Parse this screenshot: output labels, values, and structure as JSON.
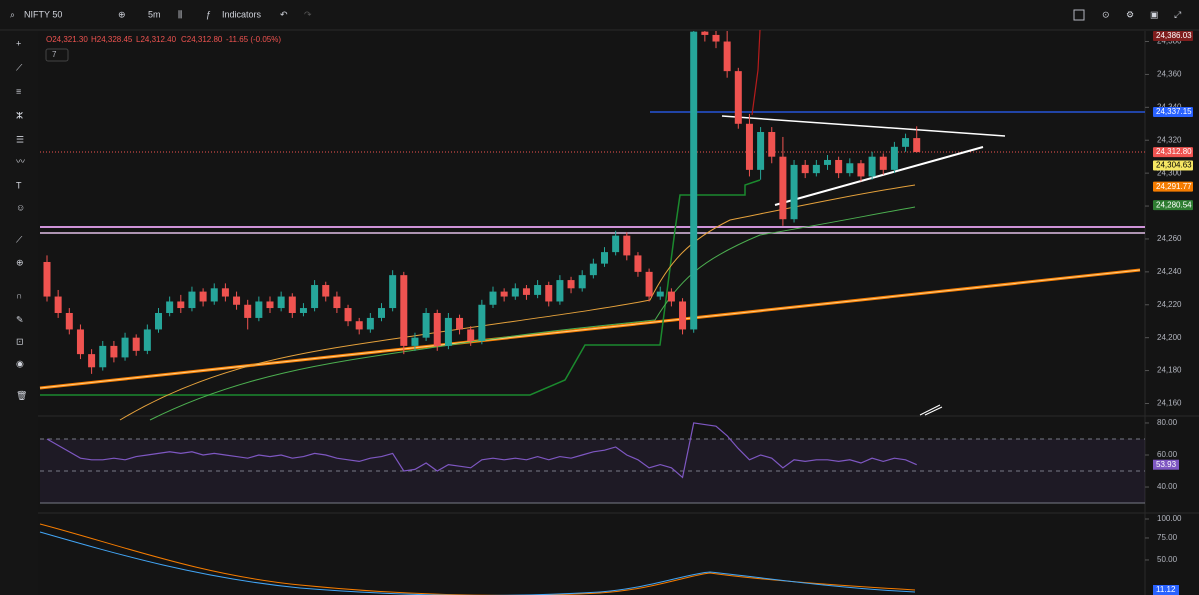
{
  "toolbar": {
    "symbol": "NIFTY 50",
    "interval": "5m",
    "indicators": "Indicators"
  },
  "legend": {
    "open": "O24,321.30",
    "high": "H24,328.45",
    "low": "L24,312.40",
    "close": "C24,312.80",
    "change": "-11.65 (-0.05%)",
    "collapsed_count": "7"
  },
  "price_chart": {
    "type": "candlestick",
    "ylim": [
      24153,
      24387
    ],
    "yticks": [
      {
        "value": 24160,
        "label": "24,160"
      },
      {
        "value": 24180,
        "label": "24,180"
      },
      {
        "value": 24200,
        "label": "24,200"
      },
      {
        "value": 24220,
        "label": "24,220"
      },
      {
        "value": 24240,
        "label": "24,240"
      },
      {
        "value": 24260,
        "label": "24,260"
      },
      {
        "value": 24280,
        "label": "24,280"
      },
      {
        "value": 24300,
        "label": "24,300"
      },
      {
        "value": 24320,
        "label": "24,320"
      },
      {
        "value": 24340,
        "label": "24,340"
      },
      {
        "value": 24360,
        "label": "24,360"
      },
      {
        "value": 24380,
        "label": "24,380"
      }
    ],
    "up_color": "#26a69a",
    "down_color": "#ef5350",
    "candles": [
      [
        24246,
        24250,
        24222,
        24225
      ],
      [
        24225,
        24229,
        24212,
        24215
      ],
      [
        24215,
        24218,
        24202,
        24205
      ],
      [
        24205,
        24208,
        24187,
        24190
      ],
      [
        24190,
        24193,
        24178,
        24182
      ],
      [
        24182,
        24198,
        24180,
        24195
      ],
      [
        24195,
        24198,
        24185,
        24188
      ],
      [
        24188,
        24203,
        24186,
        24200
      ],
      [
        24200,
        24202,
        24189,
        24192
      ],
      [
        24192,
        24208,
        24190,
        24205
      ],
      [
        24205,
        24218,
        24203,
        24215
      ],
      [
        24215,
        24225,
        24213,
        24222
      ],
      [
        24222,
        24226,
        24215,
        24218
      ],
      [
        24218,
        24231,
        24216,
        24228
      ],
      [
        24228,
        24230,
        24219,
        24222
      ],
      [
        24222,
        24233,
        24220,
        24230
      ],
      [
        24230,
        24233,
        24222,
        24225
      ],
      [
        24225,
        24228,
        24217,
        24220
      ],
      [
        24220,
        24223,
        24205,
        24212
      ],
      [
        24212,
        24225,
        24210,
        24222
      ],
      [
        24222,
        24225,
        24215,
        24218
      ],
      [
        24218,
        24228,
        24216,
        24225
      ],
      [
        24225,
        24227,
        24212,
        24215
      ],
      [
        24215,
        24221,
        24213,
        24218
      ],
      [
        24218,
        24235,
        24216,
        24232
      ],
      [
        24232,
        24234,
        24222,
        24225
      ],
      [
        24225,
        24228,
        24215,
        24218
      ],
      [
        24218,
        24220,
        24207,
        24210
      ],
      [
        24210,
        24212,
        24202,
        24205
      ],
      [
        24205,
        24215,
        24203,
        24212
      ],
      [
        24212,
        24221,
        24210,
        24218
      ],
      [
        24218,
        24241,
        24216,
        24238
      ],
      [
        24238,
        24240,
        24190,
        24195
      ],
      [
        24195,
        24203,
        24192,
        24200
      ],
      [
        24200,
        24218,
        24198,
        24215
      ],
      [
        24215,
        24217,
        24192,
        24195
      ],
      [
        24195,
        24215,
        24193,
        24212
      ],
      [
        24212,
        24214,
        24202,
        24205
      ],
      [
        24205,
        24207,
        24195,
        24198
      ],
      [
        24198,
        24223,
        24196,
        24220
      ],
      [
        24220,
        24231,
        24218,
        24228
      ],
      [
        24228,
        24230,
        24222,
        24225
      ],
      [
        24225,
        24233,
        24223,
        24230
      ],
      [
        24230,
        24232,
        24223,
        24226
      ],
      [
        24226,
        24235,
        24224,
        24232
      ],
      [
        24232,
        24234,
        24219,
        24222
      ],
      [
        24222,
        24238,
        24220,
        24235
      ],
      [
        24235,
        24237,
        24227,
        24230
      ],
      [
        24230,
        24241,
        24228,
        24238
      ],
      [
        24238,
        24248,
        24236,
        24245
      ],
      [
        24245,
        24255,
        24243,
        24252
      ],
      [
        24252,
        24265,
        24250,
        24262
      ],
      [
        24262,
        24264,
        24247,
        24250
      ],
      [
        24250,
        24252,
        24237,
        24240
      ],
      [
        24240,
        24242,
        24222,
        24225
      ],
      [
        24225,
        24231,
        24223,
        24228
      ],
      [
        24228,
        24230,
        24219,
        24222
      ],
      [
        24222,
        24224,
        24202,
        24205
      ],
      [
        24205,
        24395,
        24203,
        24386
      ],
      [
        24386,
        24392,
        24380,
        24384
      ],
      [
        24384,
        24390,
        24376,
        24380
      ],
      [
        24380,
        24390,
        24358,
        24362
      ],
      [
        24362,
        24364,
        24327,
        24330
      ],
      [
        24330,
        24336,
        24298,
        24302
      ],
      [
        24302,
        24328,
        24296,
        24325
      ],
      [
        24325,
        24328,
        24306,
        24310
      ],
      [
        24310,
        24322,
        24268,
        24272
      ],
      [
        24272,
        24308,
        24270,
        24305
      ],
      [
        24305,
        24308,
        24297,
        24300
      ],
      [
        24300,
        24308,
        24298,
        24305
      ],
      [
        24305,
        24311,
        24302,
        24308
      ],
      [
        24308,
        24310,
        24297,
        24300
      ],
      [
        24300,
        24309,
        24298,
        24306
      ],
      [
        24306,
        24308,
        24295,
        24298
      ],
      [
        24298,
        24313,
        24296,
        24310
      ],
      [
        24310,
        24312,
        24299,
        24302
      ],
      [
        24302,
        24319,
        24300,
        24316
      ],
      [
        24316,
        24324,
        24313,
        24321.3
      ],
      [
        24321.3,
        24328.45,
        24312.4,
        24312.8
      ]
    ],
    "price_labels": [
      {
        "value": 24386.03,
        "label": "24,386.03",
        "color": "#7f1d1d"
      },
      {
        "value": 24337.15,
        "label": "24,337.15",
        "color": "#2962ff"
      },
      {
        "value": 24312.8,
        "label": "24,312.80",
        "color": "#ef5350"
      },
      {
        "value": 24304.63,
        "label": "24,304.63",
        "color": "#f5e663"
      },
      {
        "value": 24291.77,
        "label": "24,291.77",
        "color": "#f57c00"
      },
      {
        "value": 24280.54,
        "label": "24,280.54",
        "color": "#2e7d32"
      }
    ]
  },
  "rsi": {
    "type": "line",
    "ylim": [
      24.4,
      83.1
    ],
    "yticks": [
      {
        "value": 80,
        "label": "80.00"
      },
      {
        "value": 60,
        "label": "60.00"
      },
      {
        "value": 40,
        "label": "40.00"
      }
    ],
    "levels": [
      70,
      50,
      30
    ],
    "color": "#7e57c2",
    "values": [
      70,
      66,
      62,
      58,
      57,
      57,
      58,
      57,
      59,
      60,
      61,
      62,
      61,
      62,
      60,
      61,
      60,
      59,
      58,
      60,
      59,
      60,
      58,
      59,
      61,
      60,
      58,
      57,
      56,
      58,
      59,
      61,
      50,
      51,
      55,
      50,
      54,
      53,
      52,
      57,
      58,
      57,
      58,
      57,
      59,
      57,
      59,
      58,
      60,
      62,
      63,
      65,
      60,
      57,
      52,
      54,
      52,
      46,
      80,
      79,
      78,
      72,
      64,
      57,
      60,
      58,
      52,
      57,
      56,
      57,
      57,
      56,
      57,
      55,
      58,
      56,
      58,
      57,
      53.93
    ],
    "last_label": {
      "value": 53.93,
      "label": "53.93"
    }
  },
  "lower": {
    "ylim": [
      10.2,
      101.1
    ],
    "yticks": [
      {
        "value": 100,
        "label": "100.00"
      },
      {
        "value": 75,
        "label": "75.00"
      },
      {
        "value": 50,
        "label": "50.00"
      }
    ],
    "last_labels": [
      {
        "value": 13.44,
        "label": "13.44",
        "color": "#f57c00"
      },
      {
        "value": 11.12,
        "label": "11.12",
        "color": "#2962ff"
      }
    ]
  }
}
